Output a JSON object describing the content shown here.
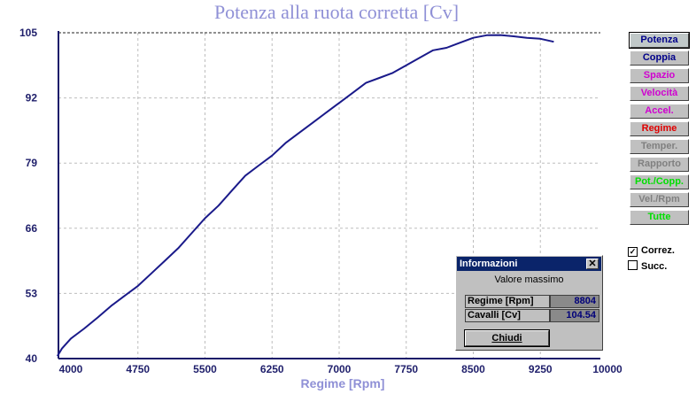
{
  "chart_data": {
    "type": "line",
    "title": "Potenza alla ruota corretta [Cv]",
    "xlabel": "Regime [Rpm]",
    "ylabel": "",
    "xlim": [
      3850,
      10000
    ],
    "ylim": [
      40,
      105
    ],
    "xticks": [
      "4000",
      "4750",
      "5500",
      "6250",
      "7000",
      "7750",
      "8500",
      "9250",
      "10000"
    ],
    "yticks": [
      "105",
      "92",
      "79",
      "66",
      "53",
      "40"
    ],
    "grid": true,
    "reference_line": 105,
    "series": [
      {
        "color": "#1a1a8a",
        "x": [
          3850,
          3900,
          4000,
          4150,
          4300,
          4450,
          4600,
          4750,
          4900,
          5050,
          5200,
          5350,
          5500,
          5650,
          5800,
          5950,
          6100,
          6250,
          6400,
          6550,
          6700,
          6850,
          7000,
          7150,
          7300,
          7450,
          7600,
          7750,
          7900,
          8050,
          8200,
          8350,
          8500,
          8650,
          8804,
          8950,
          9100,
          9250,
          9400
        ],
        "y": [
          40.5,
          42.0,
          44.0,
          46.0,
          48.2,
          50.5,
          52.5,
          54.5,
          57.0,
          59.5,
          62.0,
          65.0,
          68.0,
          70.5,
          73.5,
          76.5,
          78.5,
          80.5,
          83.0,
          85.0,
          87.0,
          89.0,
          91.0,
          93.0,
          95.0,
          96.0,
          97.0,
          98.5,
          100.0,
          101.5,
          102.0,
          103.0,
          104.0,
          104.5,
          104.54,
          104.3,
          104.0,
          103.8,
          103.2
        ]
      }
    ]
  },
  "side_buttons": [
    {
      "label": "Potenza",
      "color": "#00008a"
    },
    {
      "label": "Coppia",
      "color": "#00008a"
    },
    {
      "label": "Spazio",
      "color": "#d000d0"
    },
    {
      "label": "Velocità",
      "color": "#d000d0"
    },
    {
      "label": "Accel.",
      "color": "#d000d0"
    },
    {
      "label": "Regime",
      "color": "#e00000"
    },
    {
      "label": "Temper.",
      "color": "#808080"
    },
    {
      "label": "Rapporto",
      "color": "#808080"
    },
    {
      "label": "Pot./Copp.",
      "color": "#00e000"
    },
    {
      "label": "Vel./Rpm",
      "color": "#808080"
    },
    {
      "label": "Tutte",
      "color": "#00e000"
    }
  ],
  "checkboxes": {
    "correz": {
      "label": "Correz.",
      "checked": true
    },
    "succ": {
      "label": "Succ.",
      "checked": false
    }
  },
  "info_dialog": {
    "title": "Informazioni",
    "close_glyph": "✕",
    "subtitle": "Valore massimo",
    "rows": [
      {
        "label": "Regime [Rpm]",
        "value": "8804"
      },
      {
        "label": "Cavalli [Cv]",
        "value": "104.54"
      }
    ],
    "button_label": "Chiudi"
  }
}
